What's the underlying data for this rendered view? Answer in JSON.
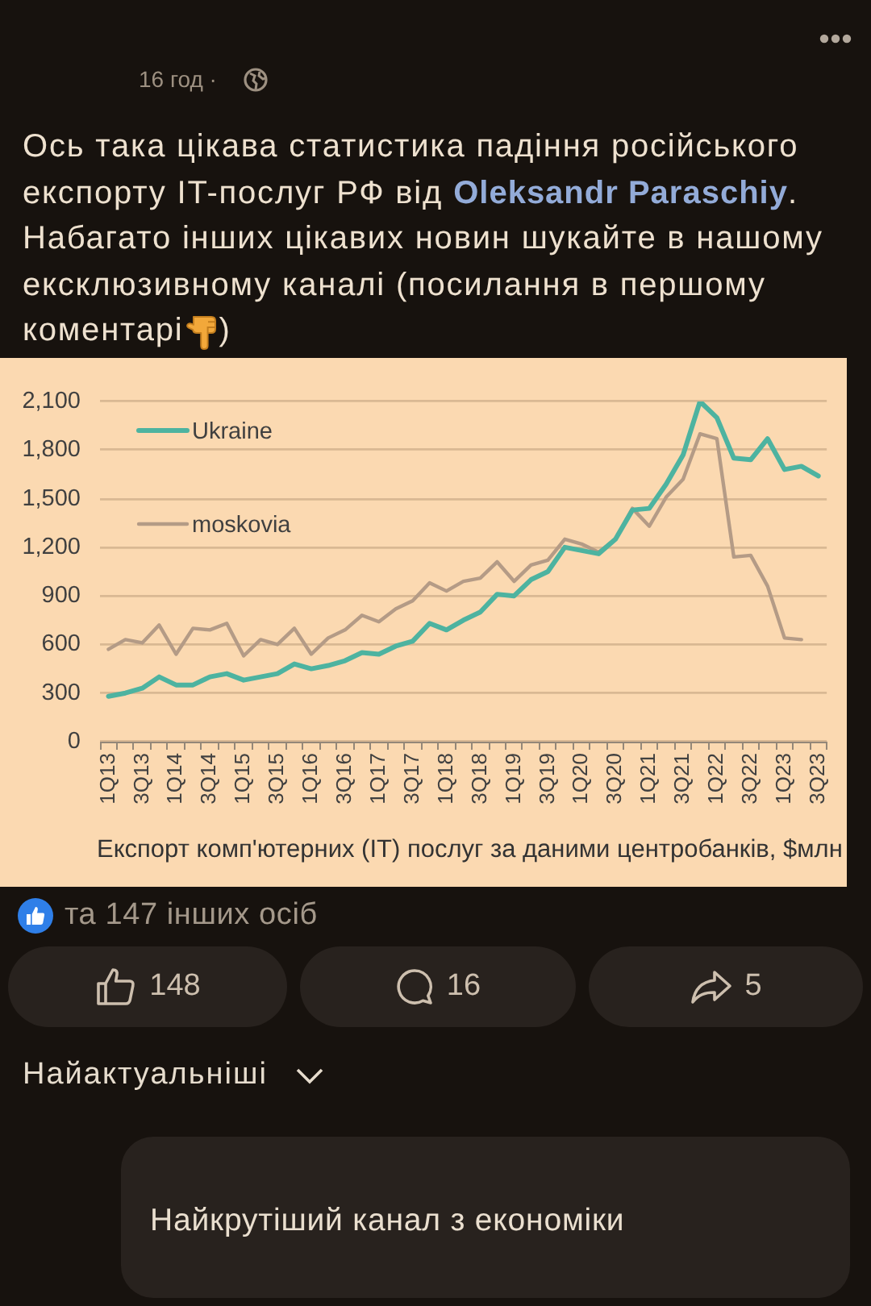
{
  "chart_data": {
    "type": "line",
    "title": "Експорт комп'ютерних (IT) послуг за даними центробанків, $млн",
    "categories": [
      "1Q13",
      null,
      "3Q13",
      null,
      "1Q14",
      null,
      "3Q14",
      null,
      "1Q15",
      null,
      "3Q15",
      null,
      "1Q16",
      null,
      "3Q16",
      null,
      "1Q17",
      null,
      "3Q17",
      null,
      "1Q18",
      null,
      "3Q18",
      null,
      "1Q19",
      null,
      "3Q19",
      null,
      "1Q20",
      null,
      "3Q20",
      null,
      "1Q21",
      null,
      "3Q21",
      null,
      "1Q22",
      null,
      "3Q22",
      null,
      "1Q23",
      null,
      "3Q23"
    ],
    "series": [
      {
        "name": "Ukraine",
        "color": "#4db3a0",
        "values": [
          280,
          300,
          330,
          400,
          350,
          350,
          400,
          420,
          380,
          400,
          420,
          480,
          450,
          470,
          500,
          550,
          540,
          590,
          620,
          730,
          690,
          750,
          800,
          910,
          900,
          1000,
          1050,
          1200,
          1180,
          1160,
          1250,
          1430,
          1440,
          1590,
          1770,
          2100,
          2000,
          1750,
          1740,
          1870,
          1680,
          1700,
          1640
        ]
      },
      {
        "name": "moskovia",
        "color": "#b49b86",
        "values": [
          570,
          630,
          610,
          720,
          540,
          700,
          690,
          730,
          530,
          630,
          600,
          700,
          540,
          640,
          690,
          780,
          740,
          820,
          870,
          980,
          930,
          990,
          1010,
          1110,
          990,
          1090,
          1120,
          1250,
          1220,
          1170,
          1250,
          1440,
          1330,
          1510,
          1620,
          1900,
          1870,
          1140,
          1150,
          960,
          640,
          630,
          null
        ]
      }
    ],
    "ylim": [
      0,
      2100
    ],
    "yticks": [
      0,
      300,
      600,
      900,
      {
        "value": 1200,
        "label": "1,200"
      },
      {
        "value": 1500,
        "label": "1,500"
      },
      {
        "value": 1800,
        "label": "1,800"
      },
      {
        "value": 2100,
        "label": "2,100"
      }
    ],
    "grid": "y",
    "legend": "top left",
    "marker": "none",
    "annotations": [
      "16 год ·",
      "Ось така цікава статистика падіння російського",
      "експорту IT-послуг РФ від",
      "Oleksandr Paraschiy",
      ".",
      "Набагато інших цікавих новин шукайте в нашому",
      "ексклюзивному каналі (посилання в першому",
      "коментарі",
      ")",
      "та 147 інших осіб",
      "148",
      "16",
      "5",
      "Найактуальніші",
      "Найкрутіший канал з економіки"
    ]
  }
}
